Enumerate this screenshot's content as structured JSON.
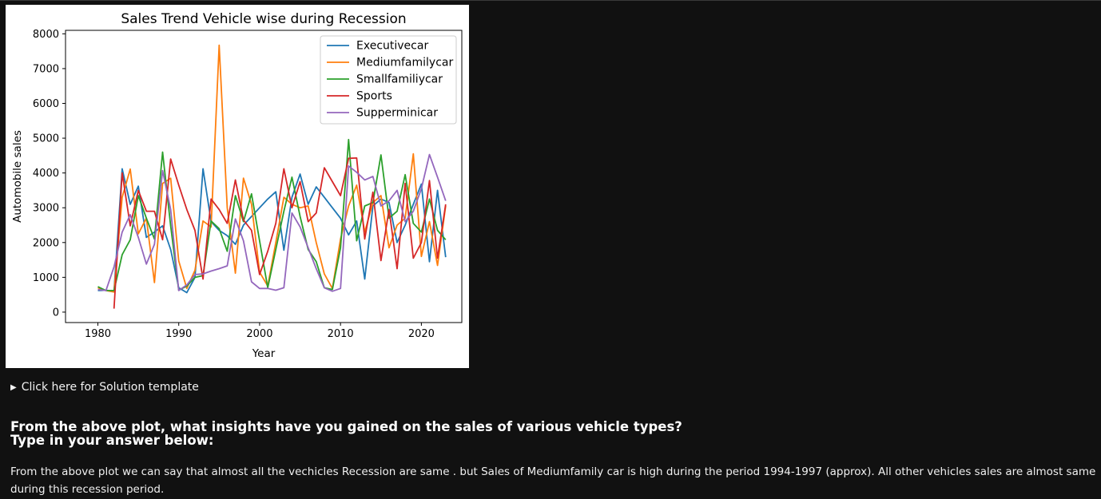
{
  "solution_toggle": {
    "label": "Click here for Solution template"
  },
  "question": {
    "line1": "From the above plot, what insights have you gained on the sales of various vehicle types?",
    "line2": "Type in your answer below:"
  },
  "answer": {
    "text": "From the above plot we can say that almost all the vechicles Recession are same . but Sales of Mediumfamily car is high during the period 1994-1997 (approx). All other vehicles sales are almost same during this recession period."
  },
  "chart_data": {
    "type": "line",
    "title": "Sales Trend Vehicle wise during Recession",
    "xlabel": "Year",
    "ylabel": "Automobile sales",
    "xlim": [
      1976,
      2025
    ],
    "ylim": [
      -300,
      8100
    ],
    "xticks": [
      1980,
      1990,
      2000,
      2010,
      2020
    ],
    "yticks": [
      0,
      1000,
      2000,
      3000,
      4000,
      5000,
      6000,
      7000,
      8000
    ],
    "legend_position": "top-right",
    "grid": false,
    "series": [
      {
        "name": "Executivecar",
        "color": "#1f77b4",
        "x": [
          1980,
          1981,
          1982,
          1983,
          1984,
          1985,
          1986,
          1987,
          1988,
          1989,
          1990,
          1991,
          1992,
          1993,
          1994,
          1995,
          1996,
          1997,
          1998,
          1999,
          2000,
          2001,
          2002,
          2003,
          2004,
          2005,
          2006,
          2007,
          2008,
          2009,
          2010,
          2011,
          2012,
          2013,
          2014,
          2015,
          2016,
          2017,
          2018,
          2019,
          2020,
          2021,
          2022,
          2023
        ],
        "y": [
          620,
          630,
          600,
          4120,
          3100,
          3620,
          2150,
          2300,
          2480,
          1800,
          700,
          560,
          1000,
          4120,
          2600,
          2350,
          2200,
          1950,
          2500,
          2750,
          3000,
          3250,
          3460,
          1780,
          3300,
          3970,
          3100,
          3600,
          3300,
          3000,
          2700,
          2220,
          2620,
          950,
          3050,
          3250,
          3150,
          2000,
          2500,
          3100,
          3680,
          1450,
          3500,
          1580
        ]
      },
      {
        "name": "Mediumfamilycar",
        "color": "#ff7f0e",
        "x": [
          1980,
          1981,
          1982,
          1983,
          1984,
          1985,
          1986,
          1987,
          1988,
          1989,
          1990,
          1991,
          1992,
          1993,
          1994,
          1995,
          1996,
          1997,
          1998,
          1999,
          2000,
          2001,
          2002,
          2003,
          2004,
          2005,
          2006,
          2007,
          2008,
          2009,
          2010,
          2011,
          2012,
          2013,
          2014,
          2015,
          2016,
          2017,
          2018,
          2019,
          2020,
          2021,
          2022,
          2023
        ],
        "y": [
          700,
          620,
          580,
          3300,
          4110,
          2250,
          2700,
          850,
          3700,
          3850,
          1470,
          680,
          1200,
          2620,
          2450,
          7670,
          3000,
          1120,
          3850,
          3100,
          1150,
          750,
          2000,
          3300,
          3100,
          3000,
          3050,
          2000,
          1100,
          680,
          2100,
          3050,
          3650,
          2300,
          3150,
          3350,
          1850,
          2500,
          2700,
          4550,
          1600,
          2600,
          1340,
          3050
        ]
      },
      {
        "name": "Smallfamiliycar",
        "color": "#2ca02c",
        "x": [
          1980,
          1981,
          1982,
          1983,
          1984,
          1985,
          1986,
          1987,
          1988,
          1989,
          1990,
          1991,
          1992,
          1993,
          1994,
          1995,
          1996,
          1997,
          1998,
          1999,
          2000,
          2001,
          2002,
          2003,
          2004,
          2005,
          2006,
          2007,
          2008,
          2009,
          2010,
          2011,
          2012,
          2013,
          2014,
          2015,
          2016,
          2017,
          2018,
          2019,
          2020,
          2021,
          2022,
          2023
        ],
        "y": [
          730,
          620,
          620,
          1650,
          2080,
          3350,
          2700,
          2100,
          4600,
          2480,
          630,
          750,
          1000,
          1050,
          2620,
          2400,
          1750,
          3350,
          2600,
          3400,
          2050,
          700,
          1800,
          2900,
          3880,
          2750,
          1800,
          1450,
          700,
          650,
          1850,
          4960,
          2050,
          3050,
          3150,
          4520,
          2700,
          2900,
          3950,
          2550,
          2300,
          3250,
          2350,
          2080
        ]
      },
      {
        "name": "Sports",
        "color": "#d62728",
        "x": [
          1982,
          1983,
          1984,
          1985,
          1986,
          1987,
          1988,
          1989,
          1990,
          1991,
          1992,
          1993,
          1994,
          1995,
          1996,
          1997,
          1998,
          1999,
          2000,
          2001,
          2002,
          2003,
          2004,
          2005,
          2006,
          2007,
          2008,
          2009,
          2010,
          2011,
          2012,
          2013,
          2014,
          2015,
          2016,
          2017,
          2018,
          2019,
          2020,
          2021,
          2022,
          2023
        ],
        "y": [
          100,
          4000,
          2480,
          3500,
          2900,
          2900,
          2080,
          4400,
          3650,
          2950,
          2350,
          950,
          3250,
          2950,
          2550,
          3800,
          2650,
          2350,
          1080,
          1750,
          2550,
          4120,
          3000,
          3750,
          2600,
          2850,
          4150,
          3750,
          3350,
          4420,
          4430,
          2100,
          3450,
          1480,
          2950,
          1250,
          3700,
          1550,
          2000,
          3780,
          1550,
          3100
        ]
      },
      {
        "name": "Supperminicar",
        "color": "#9467bd",
        "x": [
          1980,
          1981,
          1982,
          1983,
          1984,
          1985,
          1986,
          1987,
          1988,
          1989,
          1990,
          1991,
          1992,
          1993,
          1994,
          1995,
          1996,
          1997,
          1998,
          1999,
          2000,
          2001,
          2002,
          2003,
          2004,
          2005,
          2006,
          2007,
          2008,
          2009,
          2010,
          2011,
          2012,
          2013,
          2014,
          2015,
          2016,
          2017,
          2018,
          2019,
          2020,
          2021,
          2022,
          2023
        ],
        "y": [
          650,
          620,
          1300,
          2300,
          2800,
          2150,
          1380,
          1950,
          4070,
          2950,
          620,
          780,
          1080,
          1100,
          1180,
          1250,
          1330,
          2680,
          2050,
          870,
          680,
          680,
          630,
          700,
          2850,
          2450,
          1850,
          1250,
          700,
          600,
          680,
          4200,
          4020,
          3800,
          3900,
          3050,
          3200,
          3500,
          2600,
          2900,
          3550,
          4530,
          3880,
          3200
        ]
      }
    ]
  }
}
